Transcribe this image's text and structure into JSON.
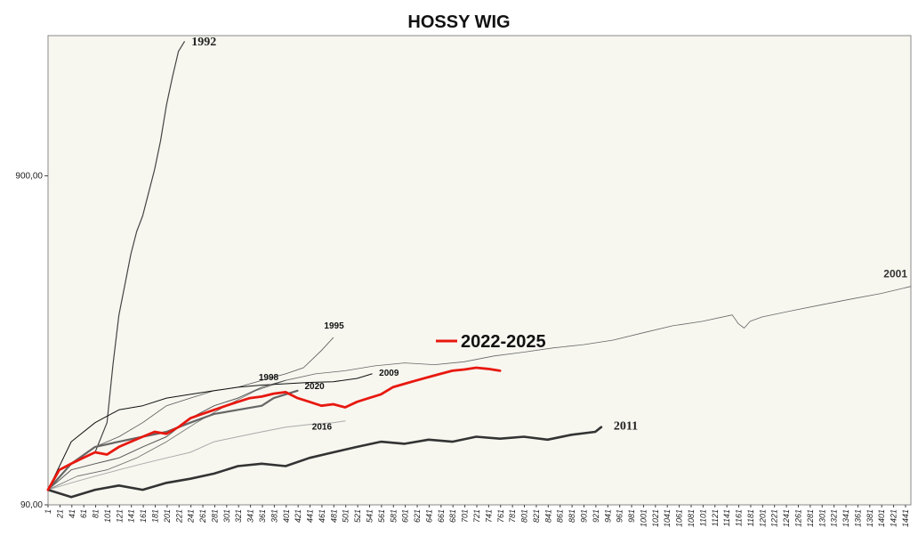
{
  "chart_data": {
    "type": "line",
    "title": "HOSSY WIG",
    "xlabel": "",
    "ylabel": "",
    "y_scale": "log",
    "y_ticks": [
      90,
      900
    ],
    "y_tick_labels": [
      "90,00",
      "900,00"
    ],
    "ylim": [
      90,
      2400
    ],
    "xlim": [
      1,
      1450
    ],
    "x_ticks": [
      1,
      21,
      41,
      61,
      81,
      101,
      121,
      141,
      161,
      181,
      201,
      221,
      241,
      261,
      281,
      301,
      321,
      341,
      361,
      381,
      401,
      421,
      441,
      461,
      481,
      501,
      521,
      541,
      561,
      581,
      601,
      621,
      641,
      661,
      681,
      701,
      721,
      741,
      761,
      781,
      801,
      821,
      841,
      861,
      881,
      901,
      921,
      941,
      961,
      981,
      1001,
      1021,
      1041,
      1061,
      1081,
      1101,
      1121,
      1141,
      1161,
      1181,
      1201,
      1221,
      1241,
      1261,
      1281,
      1301,
      1321,
      1341,
      1361,
      1381,
      1401,
      1421,
      1441
    ],
    "x_tick_labels": [
      "1",
      "21",
      "41",
      "61",
      "81",
      "101",
      "121",
      "141",
      "161",
      "181",
      "201",
      "221",
      "241",
      "261",
      "281",
      "301",
      "321",
      "341",
      "361",
      "381",
      "401",
      "421",
      "441",
      "461",
      "481",
      "501",
      "521",
      "541",
      "561",
      "581",
      "601",
      "621",
      "641",
      "661",
      "681",
      "701",
      "721",
      "741",
      "761",
      "781",
      "801",
      "821",
      "841",
      "861",
      "881",
      "901",
      "921",
      "941",
      "961",
      "981",
      "1001",
      "1021",
      "1041",
      "1061",
      "1081",
      "1101",
      "1121",
      "1141",
      "1161",
      "1181",
      "1201",
      "1221",
      "1241",
      "1261",
      "1281",
      "1301",
      "1321",
      "1341",
      "1361",
      "1381",
      "1401",
      "1421",
      "1441"
    ],
    "grid": false,
    "background": "#f7f7f0",
    "series": [
      {
        "name": "1992",
        "color": "#444444",
        "width": 1.2,
        "label_style": "bold-serif",
        "x": [
          1,
          20,
          40,
          60,
          80,
          100,
          110,
          120,
          130,
          140,
          150,
          160,
          170,
          180,
          190,
          200,
          210,
          220,
          230
        ],
        "y": [
          100,
          115,
          120,
          125,
          130,
          160,
          240,
          340,
          420,
          520,
          610,
          680,
          800,
          940,
          1150,
          1480,
          1800,
          2150,
          2300
        ]
      },
      {
        "name": "2001",
        "color": "#666666",
        "width": 0.8,
        "label_style": "bold-sans",
        "x": [
          1,
          50,
          100,
          150,
          200,
          250,
          300,
          350,
          400,
          450,
          500,
          550,
          600,
          650,
          700,
          750,
          800,
          850,
          900,
          950,
          1000,
          1050,
          1100,
          1150,
          1160,
          1170,
          1180,
          1200,
          1250,
          1300,
          1350,
          1400,
          1450
        ],
        "y": [
          100,
          110,
          115,
          125,
          140,
          160,
          180,
          200,
          215,
          225,
          230,
          238,
          243,
          240,
          245,
          255,
          262,
          270,
          276,
          285,
          300,
          315,
          325,
          340,
          320,
          310,
          325,
          335,
          350,
          365,
          380,
          395,
          415
        ]
      },
      {
        "name": "1995",
        "color": "#555555",
        "width": 0.8,
        "label_style": "bold-sans-small",
        "x": [
          1,
          40,
          80,
          120,
          160,
          200,
          240,
          280,
          320,
          360,
          400,
          430,
          460,
          480
        ],
        "y": [
          100,
          120,
          135,
          145,
          160,
          180,
          190,
          200,
          205,
          215,
          225,
          235,
          265,
          290
        ]
      },
      {
        "name": "2009",
        "color": "#111111",
        "width": 1.0,
        "label_style": "bold-sans-small",
        "x": [
          1,
          40,
          80,
          120,
          160,
          200,
          240,
          280,
          320,
          360,
          400,
          440,
          480,
          520,
          545
        ],
        "y": [
          100,
          140,
          160,
          175,
          180,
          190,
          195,
          200,
          205,
          208,
          210,
          212,
          213,
          218,
          225
        ]
      },
      {
        "name": "1998",
        "color": "#555555",
        "width": 1.0,
        "label_style": "bold-sans-small",
        "x": [
          1,
          40,
          80,
          120,
          160,
          200,
          240,
          280,
          320,
          360,
          400
        ],
        "y": [
          100,
          115,
          120,
          125,
          135,
          145,
          165,
          180,
          190,
          205,
          215
        ]
      },
      {
        "name": "2020",
        "color": "#666666",
        "width": 2.2,
        "label_style": "bold-sans-small",
        "x": [
          1,
          40,
          80,
          120,
          160,
          200,
          240,
          280,
          320,
          360,
          380,
          400,
          420
        ],
        "y": [
          100,
          120,
          135,
          140,
          145,
          150,
          160,
          170,
          175,
          180,
          190,
          195,
          200
        ]
      },
      {
        "name": "2016",
        "color": "#aaaaaa",
        "width": 1.0,
        "label_style": "bold-sans-small",
        "x": [
          1,
          40,
          80,
          120,
          160,
          200,
          240,
          280,
          320,
          360,
          400,
          440,
          480,
          500
        ],
        "y": [
          100,
          105,
          110,
          115,
          120,
          125,
          130,
          140,
          145,
          150,
          155,
          158,
          160,
          162
        ]
      },
      {
        "name": "2011",
        "color": "#333333",
        "width": 2.6,
        "label_style": "bold-serif",
        "x": [
          1,
          40,
          80,
          120,
          160,
          200,
          240,
          280,
          320,
          360,
          400,
          440,
          480,
          520,
          560,
          600,
          640,
          680,
          720,
          760,
          800,
          840,
          880,
          920,
          930
        ],
        "y": [
          100,
          95,
          100,
          103,
          100,
          105,
          108,
          112,
          118,
          120,
          118,
          125,
          130,
          135,
          140,
          138,
          142,
          140,
          145,
          143,
          145,
          142,
          147,
          150,
          155
        ]
      },
      {
        "name": "2022-2025",
        "color": "#e8180f",
        "width": 2.8,
        "label_style": "legend-red",
        "x": [
          1,
          20,
          40,
          60,
          80,
          100,
          120,
          140,
          160,
          180,
          200,
          220,
          240,
          260,
          280,
          300,
          320,
          340,
          360,
          380,
          400,
          420,
          440,
          460,
          480,
          500,
          520,
          540,
          560,
          580,
          600,
          620,
          640,
          660,
          680,
          700,
          720,
          740,
          760
        ],
        "y": [
          100,
          115,
          120,
          125,
          130,
          128,
          135,
          140,
          145,
          150,
          148,
          155,
          165,
          170,
          175,
          180,
          185,
          190,
          192,
          196,
          198,
          190,
          185,
          180,
          182,
          178,
          185,
          190,
          195,
          205,
          210,
          215,
          220,
          225,
          230,
          232,
          235,
          233,
          230
        ]
      }
    ]
  }
}
